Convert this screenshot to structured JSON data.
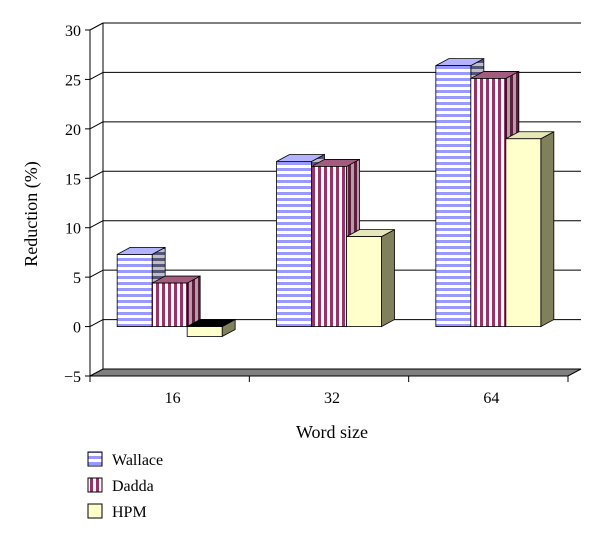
{
  "chart_data": {
    "type": "bar",
    "xlabel": "Word size",
    "ylabel": "Reduction (%)",
    "categories": [
      "16",
      "32",
      "64"
    ],
    "series": [
      {
        "name": "Wallace",
        "values": [
          7.3,
          16.7,
          26.4
        ]
      },
      {
        "name": "Dadda",
        "values": [
          4.4,
          16.2,
          25.1
        ]
      },
      {
        "name": "HPM",
        "values": [
          -1.0,
          9.1,
          19.0
        ]
      }
    ],
    "ylim": [
      -5,
      30
    ],
    "yticks": [
      "−5",
      "0",
      "5",
      "10",
      "15",
      "20",
      "25",
      "30"
    ],
    "grid": true,
    "legend_position": "bottom-left",
    "colors": {
      "Wallace": {
        "stripe_a": "#9999ff",
        "stripe_b": "#ffffff"
      },
      "Dadda": {
        "stripe_a": "#993366",
        "stripe_b": "#ffffff"
      },
      "HPM": {
        "fill": "#ffffcc"
      }
    }
  }
}
